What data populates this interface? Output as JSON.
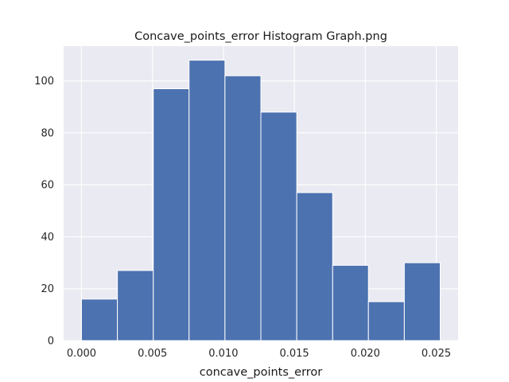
{
  "chart_data": {
    "type": "bar",
    "title": "Concave_points_error Histogram Graph.png",
    "xlabel": "concave_points_error",
    "ylabel": "",
    "bin_edges": [
      0.0,
      0.00253,
      0.00506,
      0.00758,
      0.01011,
      0.01264,
      0.01517,
      0.0177,
      0.02022,
      0.02275,
      0.02528
    ],
    "values": [
      16,
      27,
      97,
      108,
      102,
      88,
      57,
      29,
      15,
      30
    ],
    "xlim": [
      -0.00126,
      0.02654
    ],
    "ylim": [
      0,
      113.4
    ],
    "xticks": [
      0.0,
      0.005,
      0.01,
      0.015,
      0.02,
      0.025
    ],
    "xtick_labels": [
      "0.000",
      "0.005",
      "0.010",
      "0.015",
      "0.020",
      "0.025"
    ],
    "yticks": [
      0,
      20,
      40,
      60,
      80,
      100
    ],
    "ytick_labels": [
      "0",
      "20",
      "40",
      "60",
      "80",
      "100"
    ],
    "grid": true,
    "colors": {
      "bar": "#4c72b0",
      "bar_edge": "#ffffff",
      "plot_bg": "#eaeaf2",
      "grid": "#ffffff"
    }
  }
}
